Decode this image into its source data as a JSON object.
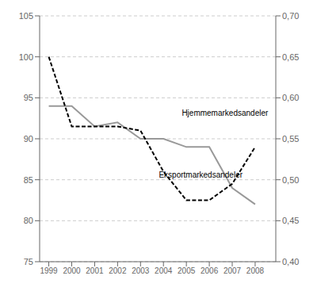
{
  "chart_data": {
    "type": "line",
    "x": [
      1999,
      2000,
      2001,
      2002,
      2003,
      2004,
      2005,
      2006,
      2007,
      2008
    ],
    "xlim": [
      1998.6,
      2008.9
    ],
    "xticks": [
      1999,
      2000,
      2001,
      2002,
      2003,
      2004,
      2005,
      2006,
      2007,
      2008
    ],
    "ylim": [
      75,
      105
    ],
    "yticks": [
      75,
      80,
      85,
      90,
      95,
      100,
      105
    ],
    "y2lim": [
      0.4,
      0.7
    ],
    "y2ticks": [
      {
        "value": 0.4,
        "label": "0,40"
      },
      {
        "value": 0.45,
        "label": "0,45"
      },
      {
        "value": 0.5,
        "label": "0,50"
      },
      {
        "value": 0.55,
        "label": "0,55"
      },
      {
        "value": 0.6,
        "label": "0,60"
      },
      {
        "value": 0.65,
        "label": "0,65"
      },
      {
        "value": 0.7,
        "label": "0,70"
      }
    ],
    "grid": true,
    "series": [
      {
        "color": "#999999",
        "line_style": "solid",
        "values": [
          94.0,
          94.0,
          91.5,
          92.0,
          90.0,
          90.0,
          89.0,
          89.0,
          84.0,
          82.0
        ]
      },
      {
        "color": "#000000",
        "line_style": "dashed",
        "values": [
          100.0,
          91.5,
          91.5,
          91.5,
          91.0,
          86.0,
          82.5,
          82.5,
          84.5,
          89.0
        ]
      }
    ],
    "annotations": [
      {
        "text": "Hjemmemarkedsandeler",
        "x": 2004.8,
        "y": 92.5
      },
      {
        "text": "Eksportmarkedsandeler",
        "x": 2003.8,
        "y": 86.2
      }
    ]
  }
}
